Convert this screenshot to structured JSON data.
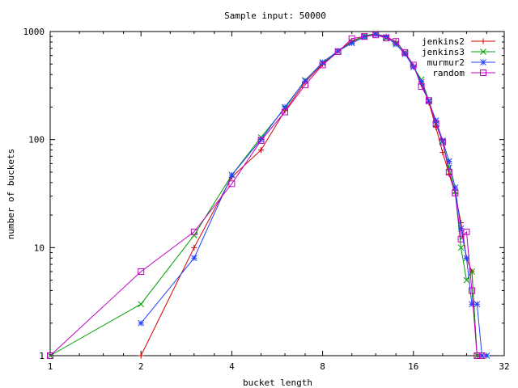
{
  "chart_data": {
    "type": "line",
    "title": "Sample input: 50000",
    "xlabel": "bucket length",
    "ylabel": "number of buckets",
    "x_scale": "log2",
    "y_scale": "log10",
    "xlim": [
      1,
      32
    ],
    "ylim": [
      1,
      1000
    ],
    "x_ticks": [
      1,
      2,
      4,
      8,
      16,
      32
    ],
    "x_tick_labels": [
      "1",
      "2",
      "4",
      "8",
      "16",
      "32"
    ],
    "y_ticks": [
      1,
      10,
      100,
      1000
    ],
    "y_tick_labels": [
      "1",
      "10",
      "100",
      "1000"
    ],
    "grid": false,
    "legend_position": "top-right",
    "series": [
      {
        "name": "jenkins2",
        "color": "#d00000",
        "marker": "plus",
        "points": [
          [
            2,
            1
          ],
          [
            3,
            10
          ],
          [
            4,
            45
          ],
          [
            5,
            80
          ],
          [
            6,
            185
          ],
          [
            7,
            340
          ],
          [
            8,
            500
          ],
          [
            9,
            660
          ],
          [
            10,
            820
          ],
          [
            11,
            900
          ],
          [
            12,
            950
          ],
          [
            13,
            900
          ],
          [
            14,
            800
          ],
          [
            15,
            630
          ],
          [
            16,
            480
          ],
          [
            17,
            330
          ],
          [
            18,
            220
          ],
          [
            19,
            130
          ],
          [
            20,
            76
          ],
          [
            21,
            48
          ],
          [
            22,
            32
          ],
          [
            23,
            17
          ],
          [
            24,
            8
          ],
          [
            25,
            6
          ],
          [
            26,
            1
          ],
          [
            27,
            1
          ]
        ]
      },
      {
        "name": "jenkins3",
        "color": "#00a000",
        "marker": "cross",
        "points": [
          [
            1,
            1
          ],
          [
            2,
            3
          ],
          [
            3,
            13
          ],
          [
            4,
            47
          ],
          [
            5,
            105
          ],
          [
            6,
            195
          ],
          [
            7,
            355
          ],
          [
            8,
            510
          ],
          [
            9,
            655
          ],
          [
            10,
            800
          ],
          [
            11,
            910
          ],
          [
            12,
            960
          ],
          [
            13,
            870
          ],
          [
            14,
            780
          ],
          [
            15,
            640
          ],
          [
            16,
            470
          ],
          [
            17,
            360
          ],
          [
            18,
            230
          ],
          [
            19,
            140
          ],
          [
            20,
            95
          ],
          [
            21,
            55
          ],
          [
            22,
            33
          ],
          [
            23,
            10
          ],
          [
            24,
            5
          ],
          [
            25,
            6
          ],
          [
            26,
            1
          ],
          [
            27,
            1
          ]
        ]
      },
      {
        "name": "murmur2",
        "color": "#2040ff",
        "marker": "star",
        "points": [
          [
            2,
            2
          ],
          [
            3,
            8
          ],
          [
            4,
            47
          ],
          [
            5,
            100
          ],
          [
            6,
            200
          ],
          [
            7,
            350
          ],
          [
            8,
            520
          ],
          [
            9,
            660
          ],
          [
            10,
            780
          ],
          [
            11,
            890
          ],
          [
            12,
            940
          ],
          [
            13,
            890
          ],
          [
            14,
            760
          ],
          [
            15,
            620
          ],
          [
            16,
            470
          ],
          [
            17,
            340
          ],
          [
            18,
            225
          ],
          [
            19,
            150
          ],
          [
            20,
            98
          ],
          [
            21,
            63
          ],
          [
            22,
            36
          ],
          [
            23,
            15
          ],
          [
            24,
            8
          ],
          [
            25,
            3
          ],
          [
            26,
            3
          ],
          [
            27,
            1
          ],
          [
            28,
            1
          ]
        ]
      },
      {
        "name": "random",
        "color": "#c000c0",
        "marker": "square",
        "points": [
          [
            1,
            1
          ],
          [
            2,
            6
          ],
          [
            3,
            14
          ],
          [
            4,
            39
          ],
          [
            5,
            98
          ],
          [
            6,
            180
          ],
          [
            7,
            320
          ],
          [
            8,
            490
          ],
          [
            9,
            650
          ],
          [
            10,
            860
          ],
          [
            11,
            900
          ],
          [
            12,
            930
          ],
          [
            13,
            870
          ],
          [
            14,
            810
          ],
          [
            15,
            640
          ],
          [
            16,
            490
          ],
          [
            17,
            310
          ],
          [
            18,
            230
          ],
          [
            19,
            140
          ],
          [
            20,
            95
          ],
          [
            21,
            50
          ],
          [
            22,
            32
          ],
          [
            23,
            12
          ],
          [
            24,
            14
          ],
          [
            25,
            4
          ],
          [
            26,
            1
          ],
          [
            27,
            1
          ]
        ]
      }
    ]
  }
}
